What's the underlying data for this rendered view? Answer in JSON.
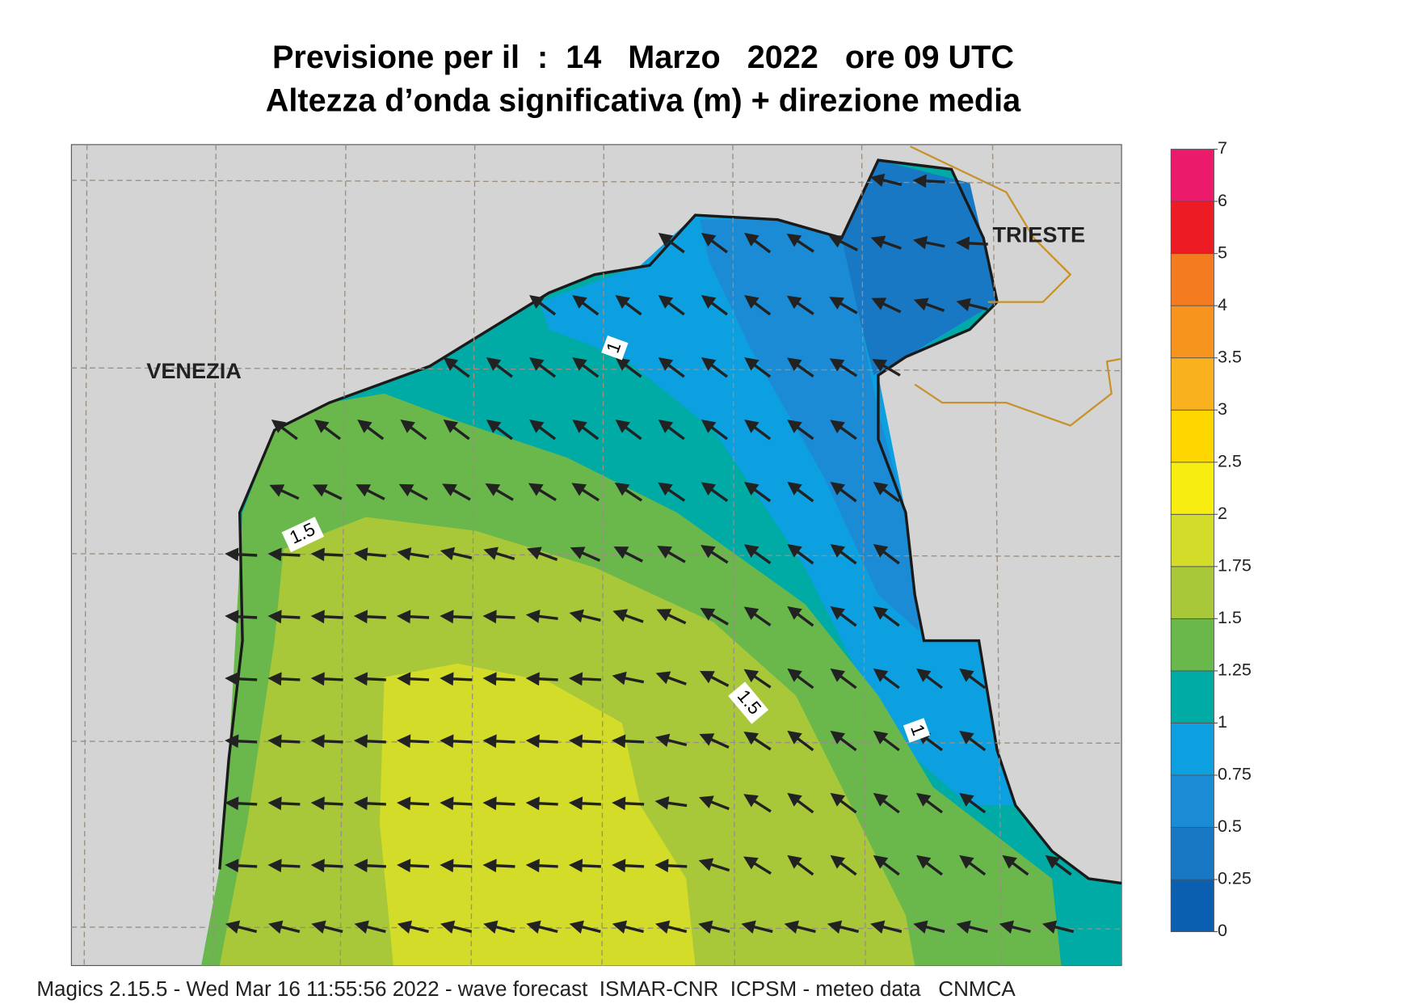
{
  "title": [
    "Previsione per il  :  14   Marzo   2022   ore 09 UTC",
    "Altezza d’onda significativa (m) + direzione media"
  ],
  "places": [
    "VENEZIA",
    "TRIESTE"
  ],
  "contour_labels": [
    1,
    1.5,
    1.5,
    1
  ],
  "footer": "Magics 2.15.5 - Wed Mar 16 11:55:56 2022 - wave forecast  ISMAR-CNR  ICPSM - meteo data   CNMCA",
  "colorbar": {
    "levels": [
      0,
      0.25,
      0.5,
      0.75,
      1,
      1.25,
      1.5,
      1.75,
      2,
      2.5,
      3,
      3.5,
      4,
      5,
      6,
      7
    ],
    "colors": [
      "#0a5fb0",
      "#1878c4",
      "#1a8bd4",
      "#0da0e0",
      "#00aaa5",
      "#6ab84c",
      "#a8c83a",
      "#d4dc2a",
      "#f7ed10",
      "#ffd700",
      "#f9b21d",
      "#f7941d",
      "#f47b20",
      "#ed1c24",
      "#ec1a6a"
    ]
  }
}
